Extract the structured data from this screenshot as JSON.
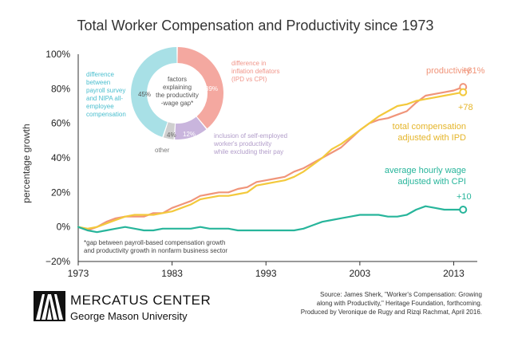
{
  "chart_data": {
    "type": "line",
    "title": "Total Worker Compensation and Productivity since 1973",
    "ylabel": "percentage growth",
    "xlabel": "",
    "xlim": [
      1973,
      2015
    ],
    "ylim": [
      -20,
      100
    ],
    "x_ticks": [
      "1973",
      "1983",
      "1993",
      "2003",
      "2013"
    ],
    "x_tick_values": [
      1973,
      1983,
      1993,
      2003,
      2013
    ],
    "y_ticks": [
      "100%",
      "80%",
      "60%",
      "40%",
      "20%",
      "0%",
      "−20%"
    ],
    "y_tick_values": [
      100,
      80,
      60,
      40,
      20,
      0,
      -20
    ],
    "series": [
      {
        "name": "productivity",
        "color": "#f0957a",
        "end_label": "+81%",
        "x": [
          1973,
          1974,
          1975,
          1976,
          1977,
          1978,
          1979,
          1980,
          1981,
          1982,
          1983,
          1984,
          1985,
          1986,
          1987,
          1988,
          1989,
          1990,
          1991,
          1992,
          1993,
          1994,
          1995,
          1996,
          1997,
          1998,
          1999,
          2000,
          2001,
          2002,
          2003,
          2004,
          2005,
          2006,
          2007,
          2008,
          2009,
          2010,
          2011,
          2012,
          2013,
          2014
        ],
        "values": [
          0,
          -2,
          0,
          3,
          5,
          6,
          6,
          6,
          8,
          8,
          11,
          13,
          15,
          18,
          19,
          20,
          20,
          22,
          23,
          26,
          27,
          28,
          29,
          32,
          34,
          37,
          40,
          43,
          46,
          51,
          56,
          60,
          62,
          63,
          65,
          67,
          72,
          76,
          77,
          78,
          79,
          81
        ]
      },
      {
        "name": "total compensation adjusted with IPD",
        "color": "#f3c93c",
        "end_label": "+78",
        "x": [
          1973,
          1974,
          1975,
          1976,
          1977,
          1978,
          1979,
          1980,
          1981,
          1982,
          1983,
          1984,
          1985,
          1986,
          1987,
          1988,
          1989,
          1990,
          1991,
          1992,
          1993,
          1994,
          1995,
          1996,
          1997,
          1998,
          1999,
          2000,
          2001,
          2002,
          2003,
          2004,
          2005,
          2006,
          2007,
          2008,
          2009,
          2010,
          2011,
          2012,
          2013,
          2014
        ],
        "values": [
          0,
          -1,
          0,
          2,
          4,
          6,
          7,
          7,
          7,
          8,
          9,
          11,
          13,
          16,
          17,
          18,
          18,
          19,
          20,
          24,
          25,
          26,
          27,
          29,
          32,
          36,
          40,
          45,
          48,
          52,
          56,
          60,
          64,
          67,
          70,
          71,
          73,
          74,
          75,
          76,
          77,
          78
        ]
      },
      {
        "name": "average hourly wage adjusted with CPI",
        "color": "#27b59b",
        "end_label": "+10",
        "x": [
          1973,
          1974,
          1975,
          1976,
          1977,
          1978,
          1979,
          1980,
          1981,
          1982,
          1983,
          1984,
          1985,
          1986,
          1987,
          1988,
          1989,
          1990,
          1991,
          1992,
          1993,
          1994,
          1995,
          1996,
          1997,
          1998,
          1999,
          2000,
          2001,
          2002,
          2003,
          2004,
          2005,
          2006,
          2007,
          2008,
          2009,
          2010,
          2011,
          2012,
          2013,
          2014
        ],
        "values": [
          0,
          -2,
          -3,
          -2,
          -1,
          0,
          -1,
          -2,
          -2,
          -1,
          -1,
          -1,
          -1,
          0,
          -1,
          -1,
          -1,
          -2,
          -2,
          -2,
          -2,
          -2,
          -2,
          -2,
          -1,
          1,
          3,
          4,
          5,
          6,
          7,
          7,
          7,
          6,
          6,
          7,
          10,
          12,
          11,
          10,
          10,
          10
        ]
      }
    ],
    "labels": {
      "productivity": "productivity",
      "productivity_value": "+81%",
      "compensation_value": "+78",
      "compensation_line1": "total compensation",
      "compensation_line2": "adjusted with IPD",
      "wage_line1": "average hourly wage",
      "wage_line2": "adjusted with CPI",
      "wage_value": "+10"
    },
    "donut": {
      "type": "pie",
      "center_lines": [
        "factors",
        "explaining",
        "the productivity",
        "-wage gap*"
      ],
      "slices": [
        {
          "label": "39%",
          "value": 39,
          "color": "#f4a8a0"
        },
        {
          "label": "12%",
          "value": 12,
          "color": "#c9b5dd"
        },
        {
          "label": "4%",
          "value": 4,
          "color": "#cfcfcf"
        },
        {
          "label": "45%",
          "value": 45,
          "color": "#a8e0e6"
        }
      ],
      "annotations": {
        "right": [
          "difference in",
          "inflation deflators",
          "(IPD vs CPI)"
        ],
        "lower_right": [
          "inclusion of self-employed",
          "worker's productivity",
          "while excluding their pay"
        ],
        "other": "other",
        "left": [
          "difference",
          "between",
          "payroll survey",
          "and NIPA all-",
          "employee",
          "compensation"
        ]
      },
      "footnote": [
        "*gap between payroll-based compensation growth",
        "and productivity growth in nonfarm business sector"
      ]
    }
  },
  "logo": {
    "main": "MERCATUS CENTER",
    "sub": "George Mason University"
  },
  "source": [
    "Source: James Sherk, \"Worker's Compensation: Growing",
    "along with Productivity,\" Heritage Foundation, forthcoming.",
    "Produced by Veronique de Rugy and Rizqi Rachmat, April 2016."
  ],
  "colors": {
    "productivity": "#f0957a",
    "compensation": "#f3c93c",
    "wage": "#27b59b",
    "axis": "#333333"
  }
}
